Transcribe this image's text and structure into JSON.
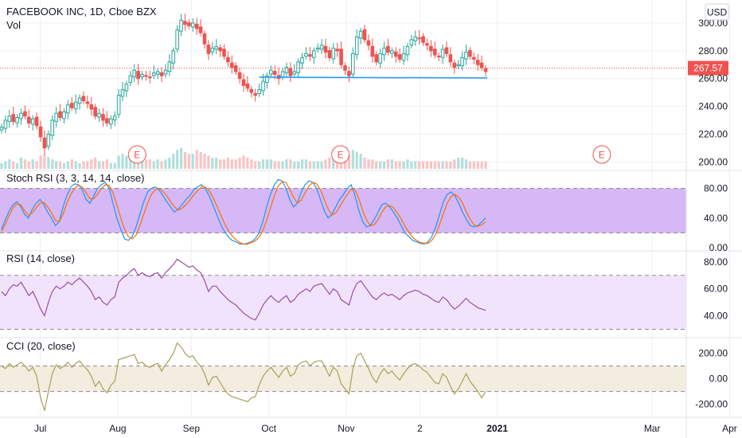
{
  "header": {
    "title": "FACEBOOK INC, 1D, Cboe BZX",
    "subtitle": "Vol",
    "currency_button": "USD"
  },
  "colors": {
    "up": "#26a69a",
    "down": "#ef5350",
    "volume_up": "#b2dfdb",
    "volume_down": "#f8c4c4",
    "stoch_k": "#2196f3",
    "stoch_d": "#ff6d00",
    "stoch_band": "#d5b8f5",
    "rsi_line": "#9c4ea8",
    "rsi_band": "#f1e3fb",
    "cci_line": "#a89f5a",
    "cci_band": "#f3ede0",
    "last_price": "#ef5350",
    "support_line": "#2196f3",
    "earnings": "#ef5350",
    "grid": "#eef0f3"
  },
  "chart_data": [
    {
      "id": "price",
      "type": "candlestick",
      "title": "FACEBOOK INC, 1D, Cboe BZX",
      "ylim": [
        195,
        312
      ],
      "y_ticks": [
        "300.00",
        "280.00",
        "260.00",
        "240.00",
        "220.00",
        "200.00"
      ],
      "last_price": 267.57,
      "last_price_label": "267.57",
      "support_level": 261,
      "closes": [
        225,
        230,
        233,
        229,
        232,
        235,
        233,
        228,
        231,
        226,
        218,
        210,
        220,
        230,
        235,
        232,
        236,
        241,
        239,
        243,
        246,
        244,
        242,
        238,
        233,
        235,
        230,
        228,
        231,
        233,
        248,
        252,
        256,
        262,
        266,
        260,
        263,
        262,
        261,
        264,
        265,
        262,
        266,
        272,
        280,
        295,
        302,
        299,
        298,
        300,
        296,
        293,
        285,
        278,
        282,
        283,
        280,
        276,
        272,
        268,
        265,
        260,
        255,
        253,
        250,
        248,
        252,
        258,
        262,
        266,
        263,
        260,
        265,
        268,
        262,
        265,
        272,
        275,
        278,
        276,
        280,
        282,
        284,
        279,
        275,
        282,
        280,
        270,
        266,
        262,
        278,
        290,
        294,
        288,
        284,
        276,
        272,
        278,
        282,
        279,
        280,
        276,
        274,
        278,
        283,
        288,
        290,
        289,
        286,
        284,
        280,
        277,
        276,
        281,
        278,
        272,
        268,
        270,
        275,
        279,
        276,
        274,
        270,
        268,
        265
      ],
      "volume": [
        3,
        4,
        5,
        4,
        3,
        6,
        5,
        4,
        5,
        4,
        7,
        8,
        6,
        5,
        4,
        4,
        3,
        4,
        5,
        4,
        3,
        4,
        4,
        5,
        6,
        4,
        4,
        5,
        3,
        3,
        7,
        8,
        7,
        10,
        9,
        8,
        6,
        5,
        5,
        4,
        5,
        4,
        5,
        6,
        8,
        10,
        11,
        9,
        8,
        8,
        10,
        9,
        8,
        7,
        6,
        6,
        5,
        5,
        6,
        5,
        5,
        6,
        7,
        6,
        5,
        4,
        4,
        5,
        5,
        5,
        4,
        4,
        4,
        5,
        5,
        4,
        4,
        5,
        5,
        4,
        4,
        4,
        4,
        5,
        6,
        7,
        9,
        9,
        8,
        7,
        10,
        9,
        8,
        6,
        5,
        5,
        4,
        4,
        4,
        5,
        5,
        4,
        4,
        4,
        5,
        4,
        4,
        4,
        4,
        4,
        4,
        4,
        4,
        4,
        4,
        4,
        5,
        6,
        6,
        5,
        4,
        4,
        4,
        4,
        4
      ],
      "earnings_labels": [
        "E",
        "E",
        "E"
      ],
      "earnings_positions": [
        0.28,
        0.7,
        1.24
      ]
    },
    {
      "id": "stoch",
      "type": "line",
      "title": "Stoch RSI (3, 3, 14, 14, close)",
      "ylim": [
        -2,
        102
      ],
      "y_ticks": [
        "80.00",
        "40.00",
        "0.00"
      ],
      "band": [
        20,
        80
      ],
      "series": [
        {
          "values": [
            25,
            38,
            50,
            58,
            62,
            55,
            45,
            40,
            52,
            60,
            65,
            58,
            48,
            40,
            30,
            35,
            55,
            70,
            82,
            86,
            85,
            78,
            65,
            60,
            70,
            80,
            85,
            88,
            80,
            60,
            40,
            25,
            12,
            10,
            15,
            28,
            45,
            62,
            75,
            80,
            82,
            78,
            70,
            62,
            55,
            48,
            52,
            58,
            65,
            70,
            78,
            82,
            85,
            80,
            70,
            58,
            45,
            32,
            22,
            15,
            10,
            8,
            5,
            5,
            6,
            8,
            12,
            20,
            35,
            55,
            72,
            85,
            92,
            90,
            80,
            65,
            55,
            60,
            75,
            85,
            90,
            88,
            80,
            65,
            50,
            40,
            45,
            55,
            65,
            72,
            80,
            85,
            70,
            50,
            35,
            28,
            30,
            38,
            48,
            58,
            60,
            55,
            48,
            40,
            30,
            20,
            15,
            10,
            8,
            6,
            5,
            8,
            15,
            28,
            45,
            62,
            72,
            75,
            70,
            60,
            48,
            38,
            30,
            28,
            30,
            35,
            40
          ]
        },
        {
          "values": [
            22,
            32,
            44,
            54,
            59,
            58,
            50,
            44,
            47,
            54,
            60,
            61,
            55,
            47,
            37,
            35,
            45,
            60,
            72,
            80,
            84,
            82,
            74,
            66,
            66,
            72,
            80,
            85,
            84,
            74,
            58,
            40,
            25,
            15,
            12,
            17,
            30,
            45,
            60,
            72,
            78,
            80,
            76,
            70,
            62,
            55,
            51,
            53,
            58,
            64,
            71,
            77,
            82,
            82,
            77,
            68,
            57,
            45,
            33,
            23,
            16,
            11,
            7,
            5,
            5,
            7,
            9,
            14,
            23,
            37,
            54,
            70,
            83,
            89,
            88,
            79,
            68,
            60,
            64,
            74,
            83,
            88,
            86,
            78,
            65,
            52,
            44,
            47,
            55,
            64,
            72,
            79,
            78,
            66,
            50,
            37,
            30,
            31,
            38,
            48,
            55,
            57,
            54,
            47,
            39,
            29,
            21,
            14,
            10,
            7,
            6,
            6,
            10,
            18,
            31,
            46,
            60,
            69,
            72,
            68,
            60,
            48,
            38,
            31,
            29,
            31,
            35
          ]
        }
      ]
    },
    {
      "id": "rsi",
      "type": "line",
      "title": "RSI (14, close)",
      "ylim": [
        25,
        87
      ],
      "y_ticks": [
        "80.00",
        "60.00",
        "40.00"
      ],
      "band": [
        30,
        70
      ],
      "series": [
        {
          "values": [
            58,
            55,
            60,
            63,
            62,
            65,
            60,
            55,
            58,
            52,
            45,
            40,
            50,
            58,
            62,
            60,
            62,
            65,
            63,
            66,
            68,
            65,
            62,
            58,
            52,
            54,
            50,
            48,
            52,
            54,
            65,
            68,
            70,
            73,
            75,
            70,
            72,
            70,
            69,
            71,
            72,
            68,
            72,
            75,
            78,
            82,
            80,
            78,
            76,
            77,
            74,
            72,
            66,
            58,
            62,
            62,
            58,
            55,
            52,
            50,
            48,
            45,
            42,
            40,
            38,
            37,
            42,
            48,
            52,
            55,
            52,
            50,
            53,
            55,
            50,
            52,
            56,
            58,
            60,
            58,
            62,
            63,
            64,
            60,
            56,
            60,
            58,
            52,
            50,
            48,
            58,
            64,
            66,
            62,
            58,
            54,
            52,
            55,
            57,
            55,
            56,
            54,
            52,
            55,
            57,
            58,
            59,
            58,
            56,
            55,
            53,
            51,
            50,
            54,
            52,
            48,
            45,
            47,
            50,
            53,
            50,
            48,
            46,
            45,
            44
          ]
        }
      ]
    },
    {
      "id": "cci",
      "type": "line",
      "title": "CCI (20, close)",
      "ylim": [
        -290,
        310
      ],
      "y_ticks": [
        "200.00",
        "0.00",
        "-200.00"
      ],
      "band": [
        -100,
        100
      ],
      "series": [
        {
          "values": [
            100,
            80,
            120,
            90,
            110,
            130,
            100,
            60,
            90,
            20,
            -150,
            -250,
            -100,
            40,
            110,
            80,
            100,
            130,
            90,
            120,
            140,
            100,
            70,
            20,
            -60,
            -20,
            -80,
            -110,
            -50,
            -20,
            150,
            160,
            170,
            180,
            190,
            120,
            130,
            100,
            90,
            110,
            120,
            60,
            110,
            150,
            200,
            280,
            250,
            200,
            170,
            180,
            130,
            100,
            40,
            -50,
            10,
            20,
            -30,
            -80,
            -120,
            -140,
            -150,
            -160,
            -170,
            -180,
            -150,
            -140,
            -50,
            20,
            60,
            90,
            50,
            10,
            60,
            90,
            20,
            40,
            110,
            130,
            140,
            100,
            130,
            140,
            140,
            80,
            20,
            90,
            60,
            -40,
            -80,
            -120,
            80,
            180,
            200,
            140,
            80,
            10,
            -30,
            40,
            80,
            40,
            60,
            20,
            -10,
            40,
            80,
            110,
            120,
            100,
            70,
            50,
            10,
            -30,
            -40,
            40,
            10,
            -60,
            -120,
            -80,
            -20,
            40,
            -20,
            -60,
            -100,
            -150,
            -100
          ]
        }
      ]
    }
  ],
  "x_axis": {
    "labels": [
      "Jul",
      "Aug",
      "Sep",
      "Oct",
      "Nov",
      "2",
      "2021",
      "Mar",
      "Apr"
    ],
    "positions": [
      10,
      30,
      49,
      69,
      89,
      108,
      128,
      168,
      188
    ],
    "bold": [
      false,
      false,
      false,
      false,
      false,
      false,
      true,
      false,
      false
    ]
  }
}
